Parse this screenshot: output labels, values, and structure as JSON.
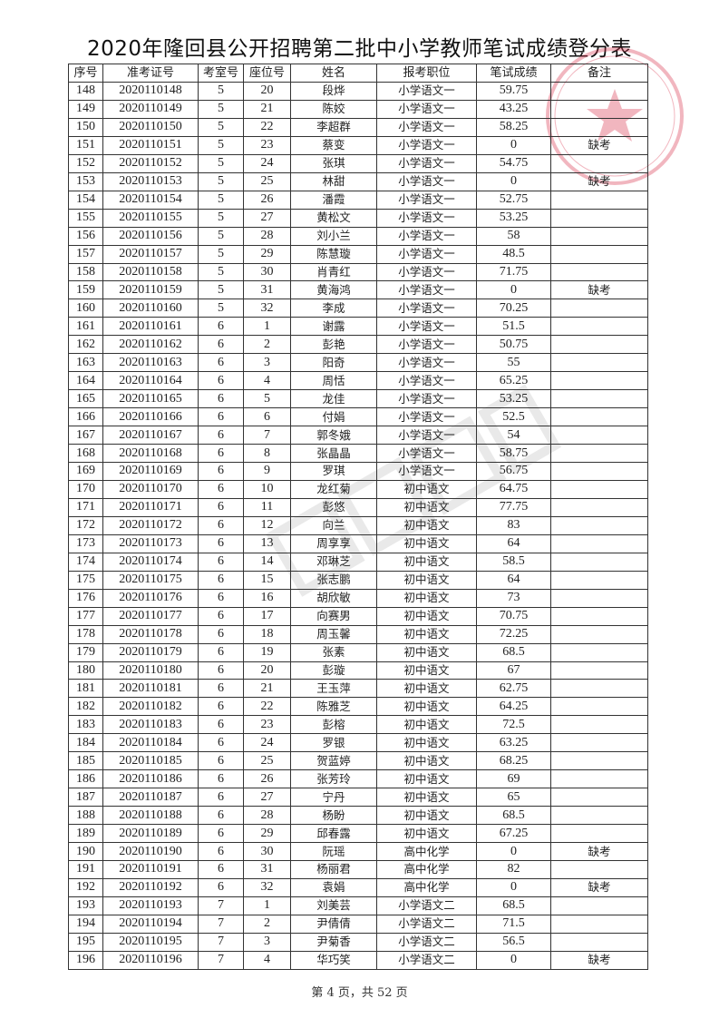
{
  "title": "2020年隆回县公开招聘第二批中小学教师笔试成绩登分表",
  "table": {
    "headers": [
      "序号",
      "准考证号",
      "考室号",
      "座位号",
      "姓名",
      "报考职位",
      "笔试成绩",
      "备注"
    ],
    "rows": [
      [
        "148",
        "2020110148",
        "5",
        "20",
        "段烨",
        "小学语文一",
        "59.75",
        ""
      ],
      [
        "149",
        "2020110149",
        "5",
        "21",
        "陈姣",
        "小学语文一",
        "43.25",
        ""
      ],
      [
        "150",
        "2020110150",
        "5",
        "22",
        "李超群",
        "小学语文一",
        "58.25",
        ""
      ],
      [
        "151",
        "2020110151",
        "5",
        "23",
        "蔡变",
        "小学语文一",
        "0",
        "缺考"
      ],
      [
        "152",
        "2020110152",
        "5",
        "24",
        "张琪",
        "小学语文一",
        "54.75",
        ""
      ],
      [
        "153",
        "2020110153",
        "5",
        "25",
        "林甜",
        "小学语文一",
        "0",
        "缺考"
      ],
      [
        "154",
        "2020110154",
        "5",
        "26",
        "潘霞",
        "小学语文一",
        "52.75",
        ""
      ],
      [
        "155",
        "2020110155",
        "5",
        "27",
        "黄松文",
        "小学语文一",
        "53.25",
        ""
      ],
      [
        "156",
        "2020110156",
        "5",
        "28",
        "刘小兰",
        "小学语文一",
        "58",
        ""
      ],
      [
        "157",
        "2020110157",
        "5",
        "29",
        "陈慧璇",
        "小学语文一",
        "48.5",
        ""
      ],
      [
        "158",
        "2020110158",
        "5",
        "30",
        "肖青红",
        "小学语文一",
        "71.75",
        ""
      ],
      [
        "159",
        "2020110159",
        "5",
        "31",
        "黄海鸿",
        "小学语文一",
        "0",
        "缺考"
      ],
      [
        "160",
        "2020110160",
        "5",
        "32",
        "李成",
        "小学语文一",
        "70.25",
        ""
      ],
      [
        "161",
        "2020110161",
        "6",
        "1",
        "谢露",
        "小学语文一",
        "51.5",
        ""
      ],
      [
        "162",
        "2020110162",
        "6",
        "2",
        "彭艳",
        "小学语文一",
        "50.75",
        ""
      ],
      [
        "163",
        "2020110163",
        "6",
        "3",
        "阳奇",
        "小学语文一",
        "55",
        ""
      ],
      [
        "164",
        "2020110164",
        "6",
        "4",
        "周恬",
        "小学语文一",
        "65.25",
        ""
      ],
      [
        "165",
        "2020110165",
        "6",
        "5",
        "龙佳",
        "小学语文一",
        "53.25",
        ""
      ],
      [
        "166",
        "2020110166",
        "6",
        "6",
        "付娟",
        "小学语文一",
        "52.5",
        ""
      ],
      [
        "167",
        "2020110167",
        "6",
        "7",
        "郭冬娥",
        "小学语文一",
        "54",
        ""
      ],
      [
        "168",
        "2020110168",
        "6",
        "8",
        "张晶晶",
        "小学语文一",
        "58.75",
        ""
      ],
      [
        "169",
        "2020110169",
        "6",
        "9",
        "罗琪",
        "小学语文一",
        "56.75",
        ""
      ],
      [
        "170",
        "2020110170",
        "6",
        "10",
        "龙红菊",
        "初中语文",
        "64.75",
        ""
      ],
      [
        "171",
        "2020110171",
        "6",
        "11",
        "彭悠",
        "初中语文",
        "77.75",
        ""
      ],
      [
        "172",
        "2020110172",
        "6",
        "12",
        "向兰",
        "初中语文",
        "83",
        ""
      ],
      [
        "173",
        "2020110173",
        "6",
        "13",
        "周享享",
        "初中语文",
        "64",
        ""
      ],
      [
        "174",
        "2020110174",
        "6",
        "14",
        "邓琳芝",
        "初中语文",
        "58.5",
        ""
      ],
      [
        "175",
        "2020110175",
        "6",
        "15",
        "张志鹏",
        "初中语文",
        "64",
        ""
      ],
      [
        "176",
        "2020110176",
        "6",
        "16",
        "胡欣敏",
        "初中语文",
        "73",
        ""
      ],
      [
        "177",
        "2020110177",
        "6",
        "17",
        "向赛男",
        "初中语文",
        "70.75",
        ""
      ],
      [
        "178",
        "2020110178",
        "6",
        "18",
        "周玉馨",
        "初中语文",
        "72.25",
        ""
      ],
      [
        "179",
        "2020110179",
        "6",
        "19",
        "张素",
        "初中语文",
        "68.5",
        ""
      ],
      [
        "180",
        "2020110180",
        "6",
        "20",
        "彭璇",
        "初中语文",
        "67",
        ""
      ],
      [
        "181",
        "2020110181",
        "6",
        "21",
        "王玉萍",
        "初中语文",
        "62.75",
        ""
      ],
      [
        "182",
        "2020110182",
        "6",
        "22",
        "陈雅芝",
        "初中语文",
        "64.25",
        ""
      ],
      [
        "183",
        "2020110183",
        "6",
        "23",
        "彭榕",
        "初中语文",
        "72.5",
        ""
      ],
      [
        "184",
        "2020110184",
        "6",
        "24",
        "罗银",
        "初中语文",
        "63.25",
        ""
      ],
      [
        "185",
        "2020110185",
        "6",
        "25",
        "贺蓝婷",
        "初中语文",
        "68.25",
        ""
      ],
      [
        "186",
        "2020110186",
        "6",
        "26",
        "张芳玲",
        "初中语文",
        "69",
        ""
      ],
      [
        "187",
        "2020110187",
        "6",
        "27",
        "宁丹",
        "初中语文",
        "65",
        ""
      ],
      [
        "188",
        "2020110188",
        "6",
        "28",
        "杨盼",
        "初中语文",
        "68.5",
        ""
      ],
      [
        "189",
        "2020110189",
        "6",
        "29",
        "邱春露",
        "初中语文",
        "67.25",
        ""
      ],
      [
        "190",
        "2020110190",
        "6",
        "30",
        "阮瑶",
        "高中化学",
        "0",
        "缺考"
      ],
      [
        "191",
        "2020110191",
        "6",
        "31",
        "杨丽君",
        "高中化学",
        "82",
        ""
      ],
      [
        "192",
        "2020110192",
        "6",
        "32",
        "袁娟",
        "高中化学",
        "0",
        "缺考"
      ],
      [
        "193",
        "2020110193",
        "7",
        "1",
        "刘美芸",
        "小学语文二",
        "68.5",
        ""
      ],
      [
        "194",
        "2020110194",
        "7",
        "2",
        "尹倩倩",
        "小学语文二",
        "71.5",
        ""
      ],
      [
        "195",
        "2020110195",
        "7",
        "3",
        "尹菊香",
        "小学语文二",
        "56.5",
        ""
      ],
      [
        "196",
        "2020110196",
        "7",
        "4",
        "华巧笑",
        "小学语文二",
        "0",
        "缺考"
      ]
    ]
  },
  "footer": "第 4 页，共 52 页",
  "colors": {
    "stamp": "#d9304a",
    "grid": "#333333"
  },
  "icons": {
    "stamp": "official-seal-icon",
    "watermark": "watermark"
  }
}
